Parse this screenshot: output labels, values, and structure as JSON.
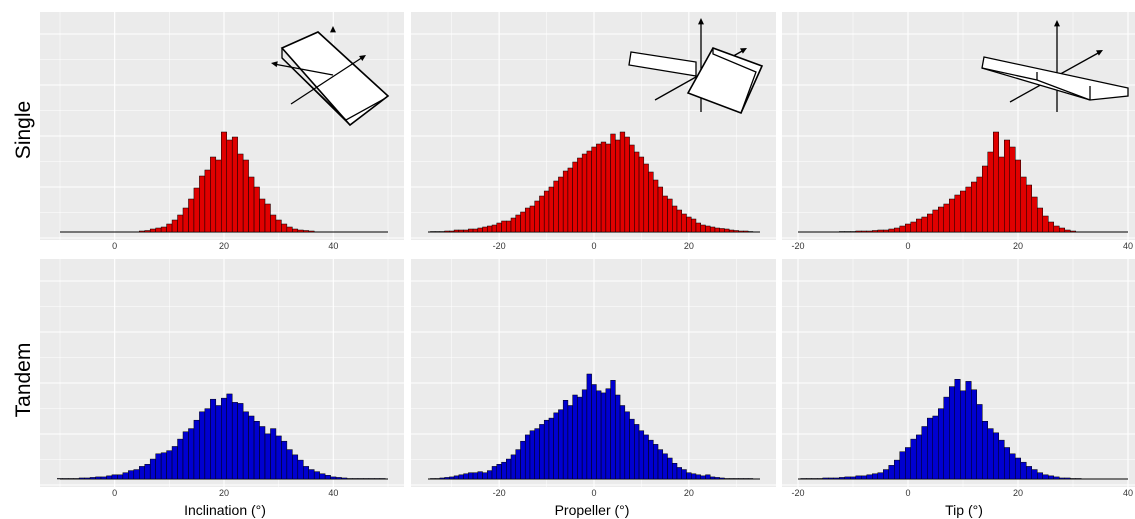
{
  "figure": {
    "row_labels": [
      "Single",
      "Tandem"
    ],
    "col_labels": [
      "Inclination (°)",
      "Propeller (°)",
      "Tip (°)"
    ]
  },
  "colors": {
    "single": "#e00000",
    "tandem": "#0000d0",
    "panel_bg": "#ebebeb",
    "grid": "#ffffff",
    "outline": "#000000"
  },
  "chart_data": [
    {
      "type": "bar",
      "row": "Single",
      "xlabel": "Inclination (°)",
      "xlim": [
        -10,
        50
      ],
      "xticks": [
        0,
        20,
        40
      ],
      "tick_labels": [
        "0",
        "20",
        "40"
      ],
      "bin_width": 1,
      "ylim": [
        0,
        1
      ],
      "grid": true,
      "inset_icon": "orientation-diagram-icon",
      "bins": [
        [
          5,
          0.01
        ],
        [
          6,
          0.015
        ],
        [
          7,
          0.03
        ],
        [
          8,
          0.04
        ],
        [
          9,
          0.05
        ],
        [
          10,
          0.08
        ],
        [
          11,
          0.12
        ],
        [
          12,
          0.17
        ],
        [
          13,
          0.24
        ],
        [
          14,
          0.33
        ],
        [
          15,
          0.44
        ],
        [
          16,
          0.56
        ],
        [
          17,
          0.62
        ],
        [
          18,
          0.75
        ],
        [
          19,
          0.72
        ],
        [
          20,
          1.0
        ],
        [
          21,
          0.92
        ],
        [
          22,
          0.95
        ],
        [
          23,
          0.78
        ],
        [
          24,
          0.72
        ],
        [
          25,
          0.55
        ],
        [
          26,
          0.45
        ],
        [
          27,
          0.33
        ],
        [
          28,
          0.28
        ],
        [
          29,
          0.17
        ],
        [
          30,
          0.12
        ],
        [
          31,
          0.08
        ],
        [
          32,
          0.05
        ],
        [
          33,
          0.03
        ],
        [
          34,
          0.02
        ],
        [
          35,
          0.015
        ],
        [
          36,
          0.01
        ]
      ]
    },
    {
      "type": "bar",
      "row": "Single",
      "xlabel": "Propeller (°)",
      "xlim": [
        -35,
        35
      ],
      "xticks": [
        -20,
        0,
        20
      ],
      "tick_labels": [
        "-20",
        "0",
        "20"
      ],
      "bin_width": 1,
      "ylim": [
        0,
        1
      ],
      "grid": true,
      "inset_icon": "orientation-diagram-icon",
      "bins": [
        [
          -34,
          0.005
        ],
        [
          -33,
          0.005
        ],
        [
          -32,
          0.005
        ],
        [
          -31,
          0.01
        ],
        [
          -30,
          0.01
        ],
        [
          -29,
          0.02
        ],
        [
          -28,
          0.02
        ],
        [
          -27,
          0.02
        ],
        [
          -26,
          0.03
        ],
        [
          -25,
          0.03
        ],
        [
          -24,
          0.04
        ],
        [
          -23,
          0.05
        ],
        [
          -22,
          0.06
        ],
        [
          -21,
          0.07
        ],
        [
          -20,
          0.09
        ],
        [
          -19,
          0.11
        ],
        [
          -18,
          0.11
        ],
        [
          -17,
          0.14
        ],
        [
          -16,
          0.17
        ],
        [
          -15,
          0.2
        ],
        [
          -14,
          0.24
        ],
        [
          -13,
          0.26
        ],
        [
          -12,
          0.31
        ],
        [
          -11,
          0.36
        ],
        [
          -10,
          0.41
        ],
        [
          -9,
          0.45
        ],
        [
          -8,
          0.51
        ],
        [
          -7,
          0.55
        ],
        [
          -6,
          0.61
        ],
        [
          -5,
          0.64
        ],
        [
          -4,
          0.7
        ],
        [
          -3,
          0.74
        ],
        [
          -2,
          0.78
        ],
        [
          -1,
          0.81
        ],
        [
          0,
          0.85
        ],
        [
          1,
          0.88
        ],
        [
          2,
          0.9
        ],
        [
          3,
          0.88
        ],
        [
          4,
          0.98
        ],
        [
          5,
          0.92
        ],
        [
          6,
          1.0
        ],
        [
          7,
          0.95
        ],
        [
          8,
          0.87
        ],
        [
          9,
          0.8
        ],
        [
          10,
          0.75
        ],
        [
          11,
          0.68
        ],
        [
          12,
          0.6
        ],
        [
          13,
          0.52
        ],
        [
          14,
          0.45
        ],
        [
          15,
          0.36
        ],
        [
          16,
          0.33
        ],
        [
          17,
          0.26
        ],
        [
          18,
          0.22
        ],
        [
          19,
          0.18
        ],
        [
          20,
          0.15
        ],
        [
          21,
          0.13
        ],
        [
          22,
          0.09
        ],
        [
          23,
          0.07
        ],
        [
          24,
          0.06
        ],
        [
          25,
          0.05
        ],
        [
          26,
          0.04
        ],
        [
          27,
          0.035
        ],
        [
          28,
          0.03
        ],
        [
          29,
          0.02
        ],
        [
          30,
          0.015
        ],
        [
          31,
          0.01
        ],
        [
          32,
          0.01
        ],
        [
          33,
          0.005
        ]
      ]
    },
    {
      "type": "bar",
      "row": "Single",
      "xlabel": "Tip (°)",
      "xlim": [
        -20,
        40
      ],
      "xticks": [
        -20,
        0,
        20,
        40
      ],
      "tick_labels": [
        "-20",
        "0",
        "20",
        "40"
      ],
      "bin_width": 1,
      "ylim": [
        0,
        1
      ],
      "grid": true,
      "inset_icon": "orientation-diagram-icon",
      "bins": [
        [
          -12,
          0.005
        ],
        [
          -11,
          0.005
        ],
        [
          -10,
          0.005
        ],
        [
          -9,
          0.01
        ],
        [
          -8,
          0.01
        ],
        [
          -7,
          0.01
        ],
        [
          -6,
          0.015
        ],
        [
          -5,
          0.02
        ],
        [
          -4,
          0.02
        ],
        [
          -3,
          0.03
        ],
        [
          -2,
          0.04
        ],
        [
          -1,
          0.06
        ],
        [
          0,
          0.08
        ],
        [
          1,
          0.1
        ],
        [
          2,
          0.13
        ],
        [
          3,
          0.15
        ],
        [
          4,
          0.18
        ],
        [
          5,
          0.22
        ],
        [
          6,
          0.25
        ],
        [
          7,
          0.28
        ],
        [
          8,
          0.33
        ],
        [
          9,
          0.37
        ],
        [
          10,
          0.41
        ],
        [
          11,
          0.45
        ],
        [
          12,
          0.5
        ],
        [
          13,
          0.55
        ],
        [
          14,
          0.66
        ],
        [
          15,
          0.8
        ],
        [
          16,
          1.0
        ],
        [
          17,
          0.75
        ],
        [
          18,
          0.92
        ],
        [
          19,
          0.85
        ],
        [
          20,
          0.72
        ],
        [
          21,
          0.55
        ],
        [
          22,
          0.47
        ],
        [
          23,
          0.35
        ],
        [
          24,
          0.24
        ],
        [
          25,
          0.16
        ],
        [
          26,
          0.1
        ],
        [
          27,
          0.06
        ],
        [
          28,
          0.04
        ],
        [
          29,
          0.02
        ],
        [
          30,
          0.01
        ]
      ]
    },
    {
      "type": "bar",
      "row": "Tandem",
      "xlabel": "Inclination (°)",
      "xlim": [
        -10,
        50
      ],
      "xticks": [
        0,
        20,
        40
      ],
      "tick_labels": [
        "0",
        "20",
        "40"
      ],
      "bin_width": 1,
      "ylim": [
        0,
        1
      ],
      "grid": true,
      "bins": [
        [
          -10,
          0.005
        ],
        [
          -9,
          0.005
        ],
        [
          -8,
          0.005
        ],
        [
          -7,
          0.005
        ],
        [
          -6,
          0.01
        ],
        [
          -5,
          0.01
        ],
        [
          -4,
          0.015
        ],
        [
          -3,
          0.02
        ],
        [
          -2,
          0.02
        ],
        [
          -1,
          0.03
        ],
        [
          0,
          0.04
        ],
        [
          1,
          0.04
        ],
        [
          2,
          0.06
        ],
        [
          3,
          0.08
        ],
        [
          4,
          0.09
        ],
        [
          5,
          0.12
        ],
        [
          6,
          0.14
        ],
        [
          7,
          0.19
        ],
        [
          8,
          0.24
        ],
        [
          9,
          0.25
        ],
        [
          10,
          0.27
        ],
        [
          11,
          0.31
        ],
        [
          12,
          0.38
        ],
        [
          13,
          0.45
        ],
        [
          14,
          0.48
        ],
        [
          15,
          0.56
        ],
        [
          16,
          0.64
        ],
        [
          17,
          0.67
        ],
        [
          18,
          0.76
        ],
        [
          19,
          0.7
        ],
        [
          20,
          0.77
        ],
        [
          21,
          0.81
        ],
        [
          22,
          0.73
        ],
        [
          23,
          0.72
        ],
        [
          24,
          0.64
        ],
        [
          25,
          0.6
        ],
        [
          26,
          0.55
        ],
        [
          27,
          0.5
        ],
        [
          28,
          0.43
        ],
        [
          29,
          0.48
        ],
        [
          30,
          0.41
        ],
        [
          31,
          0.36
        ],
        [
          32,
          0.28
        ],
        [
          33,
          0.23
        ],
        [
          34,
          0.18
        ],
        [
          35,
          0.12
        ],
        [
          36,
          0.09
        ],
        [
          37,
          0.07
        ],
        [
          38,
          0.05
        ],
        [
          39,
          0.035
        ],
        [
          40,
          0.02
        ],
        [
          41,
          0.015
        ],
        [
          42,
          0.01
        ],
        [
          43,
          0.005
        ],
        [
          44,
          0.005
        ],
        [
          45,
          0.005
        ],
        [
          46,
          0.005
        ],
        [
          47,
          0.005
        ],
        [
          48,
          0.005
        ],
        [
          49,
          0.005
        ]
      ]
    },
    {
      "type": "bar",
      "row": "Tandem",
      "xlabel": "Propeller (°)",
      "xlim": [
        -35,
        35
      ],
      "xticks": [
        -20,
        0,
        20
      ],
      "tick_labels": [
        "-20",
        "0",
        "20"
      ],
      "bin_width": 1,
      "ylim": [
        0,
        1
      ],
      "grid": true,
      "bins": [
        [
          -34,
          0.005
        ],
        [
          -33,
          0.005
        ],
        [
          -32,
          0.01
        ],
        [
          -31,
          0.015
        ],
        [
          -30,
          0.02
        ],
        [
          -29,
          0.03
        ],
        [
          -28,
          0.04
        ],
        [
          -27,
          0.05
        ],
        [
          -26,
          0.06
        ],
        [
          -25,
          0.06
        ],
        [
          -24,
          0.07
        ],
        [
          -23,
          0.06
        ],
        [
          -22,
          0.08
        ],
        [
          -21,
          0.12
        ],
        [
          -20,
          0.14
        ],
        [
          -19,
          0.16
        ],
        [
          -18,
          0.19
        ],
        [
          -17,
          0.23
        ],
        [
          -16,
          0.28
        ],
        [
          -15,
          0.36
        ],
        [
          -14,
          0.42
        ],
        [
          -13,
          0.46
        ],
        [
          -12,
          0.48
        ],
        [
          -11,
          0.52
        ],
        [
          -10,
          0.56
        ],
        [
          -9,
          0.58
        ],
        [
          -8,
          0.63
        ],
        [
          -7,
          0.66
        ],
        [
          -6,
          0.75
        ],
        [
          -5,
          0.7
        ],
        [
          -4,
          0.8
        ],
        [
          -3,
          0.78
        ],
        [
          -2,
          0.85
        ],
        [
          -1,
          1.0
        ],
        [
          0,
          0.9
        ],
        [
          1,
          0.84
        ],
        [
          2,
          0.82
        ],
        [
          3,
          0.86
        ],
        [
          4,
          0.94
        ],
        [
          5,
          0.8
        ],
        [
          6,
          0.7
        ],
        [
          7,
          0.64
        ],
        [
          8,
          0.57
        ],
        [
          9,
          0.52
        ],
        [
          10,
          0.46
        ],
        [
          11,
          0.42
        ],
        [
          12,
          0.37
        ],
        [
          13,
          0.33
        ],
        [
          14,
          0.28
        ],
        [
          15,
          0.24
        ],
        [
          16,
          0.2
        ],
        [
          17,
          0.15
        ],
        [
          18,
          0.11
        ],
        [
          19,
          0.09
        ],
        [
          20,
          0.06
        ],
        [
          21,
          0.05
        ],
        [
          22,
          0.04
        ],
        [
          23,
          0.03
        ],
        [
          24,
          0.04
        ],
        [
          25,
          0.02
        ],
        [
          26,
          0.015
        ],
        [
          27,
          0.01
        ],
        [
          28,
          0.005
        ],
        [
          29,
          0.005
        ],
        [
          30,
          0.005
        ],
        [
          31,
          0.005
        ],
        [
          32,
          0.005
        ],
        [
          33,
          0.005
        ]
      ]
    },
    {
      "type": "bar",
      "row": "Tandem",
      "xlabel": "Tip (°)",
      "xlim": [
        -20,
        40
      ],
      "xticks": [
        -20,
        0,
        20,
        40
      ],
      "tick_labels": [
        "-20",
        "0",
        "20",
        "40"
      ],
      "bin_width": 1,
      "ylim": [
        0,
        1
      ],
      "grid": true,
      "bins": [
        [
          -19,
          0.005
        ],
        [
          -18,
          0.005
        ],
        [
          -17,
          0.005
        ],
        [
          -16,
          0.005
        ],
        [
          -15,
          0.01
        ],
        [
          -14,
          0.01
        ],
        [
          -13,
          0.01
        ],
        [
          -12,
          0.015
        ],
        [
          -11,
          0.02
        ],
        [
          -10,
          0.02
        ],
        [
          -9,
          0.03
        ],
        [
          -8,
          0.03
        ],
        [
          -7,
          0.04
        ],
        [
          -6,
          0.05
        ],
        [
          -5,
          0.06
        ],
        [
          -4,
          0.09
        ],
        [
          -3,
          0.13
        ],
        [
          -2,
          0.18
        ],
        [
          -1,
          0.26
        ],
        [
          0,
          0.3
        ],
        [
          1,
          0.38
        ],
        [
          2,
          0.42
        ],
        [
          3,
          0.5
        ],
        [
          4,
          0.58
        ],
        [
          5,
          0.6
        ],
        [
          6,
          0.67
        ],
        [
          7,
          0.78
        ],
        [
          8,
          0.88
        ],
        [
          9,
          0.95
        ],
        [
          10,
          0.84
        ],
        [
          11,
          0.93
        ],
        [
          12,
          0.85
        ],
        [
          13,
          0.71
        ],
        [
          14,
          0.55
        ],
        [
          15,
          0.48
        ],
        [
          16,
          0.44
        ],
        [
          17,
          0.37
        ],
        [
          18,
          0.3
        ],
        [
          19,
          0.24
        ],
        [
          20,
          0.2
        ],
        [
          21,
          0.16
        ],
        [
          22,
          0.12
        ],
        [
          23,
          0.09
        ],
        [
          24,
          0.06
        ],
        [
          25,
          0.04
        ],
        [
          26,
          0.03
        ],
        [
          27,
          0.02
        ],
        [
          28,
          0.01
        ],
        [
          29,
          0.01
        ],
        [
          30,
          0.005
        ],
        [
          31,
          0.005
        ]
      ]
    }
  ]
}
